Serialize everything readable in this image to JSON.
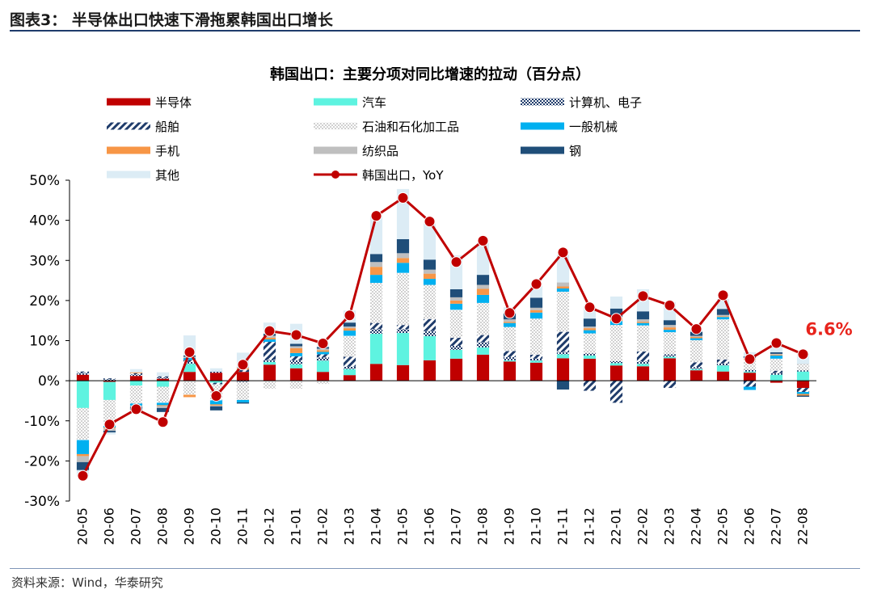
{
  "figure_title": "图表3：  半导体出口快速下滑拖累韩国出口增长",
  "source": "资料来源：Wind，华泰研究",
  "chart_data": {
    "type": "bar",
    "stacked": true,
    "title": "韩国出口：主要分项对同比增速的拉动（百分点）",
    "categories": [
      "20-05",
      "20-06",
      "20-07",
      "20-08",
      "20-09",
      "20-10",
      "20-11",
      "20-12",
      "21-01",
      "21-02",
      "21-03",
      "21-04",
      "21-05",
      "21-06",
      "21-07",
      "21-08",
      "21-09",
      "21-10",
      "21-11",
      "21-12",
      "22-01",
      "22-02",
      "22-03",
      "22-04",
      "22-05",
      "22-06",
      "22-07",
      "22-08"
    ],
    "ylim": [
      -30,
      50
    ],
    "yticks": [
      -30,
      -20,
      -10,
      0,
      10,
      20,
      30,
      40,
      50
    ],
    "ytick_labels": [
      "-30%",
      "-20%",
      "-10%",
      "0%",
      "10%",
      "20%",
      "30%",
      "40%",
      "50%"
    ],
    "series": [
      {
        "name": "半导体",
        "color": "#c00000",
        "pattern": "solid",
        "values": [
          1.5,
          -0.3,
          1.2,
          0.5,
          2.2,
          2.0,
          2.2,
          4.0,
          3.1,
          2.2,
          1.4,
          4.2,
          3.9,
          5.1,
          5.5,
          6.5,
          4.8,
          4.5,
          5.6,
          5.5,
          3.8,
          3.6,
          5.6,
          2.6,
          2.3,
          2.0,
          -0.5,
          -1.8
        ]
      },
      {
        "name": "汽车",
        "color": "#5ef3e0",
        "pattern": "solid",
        "values": [
          -6.8,
          -4.5,
          -1.2,
          -1.5,
          2.0,
          -0.5,
          0.0,
          0.7,
          1.0,
          2.8,
          1.5,
          7.5,
          8.0,
          6.0,
          2.2,
          1.8,
          0.3,
          0.5,
          1.0,
          0.8,
          0.6,
          0.6,
          0.4,
          0.3,
          1.5,
          0.3,
          1.5,
          2.3
        ]
      },
      {
        "name": "计算机、电子",
        "color": "#1f3c6b",
        "pattern": "cross",
        "values": [
          0.5,
          0.4,
          0.4,
          0.3,
          0.5,
          0.3,
          -0.3,
          0.5,
          1.0,
          0.8,
          0.6,
          1.2,
          1.0,
          1.3,
          1.0,
          1.3,
          0.8,
          0.5,
          0.6,
          0.5,
          0.5,
          0.6,
          0.6,
          0.5,
          0.5,
          0.4,
          0.4,
          0.3
        ]
      },
      {
        "name": "船舶",
        "color": "#1f3c6b",
        "pattern": "diag",
        "values": [
          0.3,
          0.2,
          0.3,
          0.3,
          0.5,
          -0.4,
          0.6,
          4.5,
          1.0,
          0.8,
          2.5,
          1.5,
          1.0,
          3.0,
          2.0,
          1.8,
          1.5,
          1.0,
          5.0,
          -2.5,
          -5.5,
          2.5,
          -1.8,
          1.2,
          1.0,
          -1.5,
          0.6,
          -1.0
        ]
      },
      {
        "name": "石油和石化加工品",
        "color": "#b7b7b7",
        "pattern": "dots",
        "values": [
          -8.0,
          -6.5,
          -4.5,
          -4.0,
          -3.5,
          -4.0,
          -4.5,
          -2.0,
          -2.0,
          -0.8,
          5.2,
          10.0,
          13.0,
          8.5,
          7.0,
          8.0,
          6.0,
          9.0,
          10.0,
          5.0,
          9.0,
          6.5,
          5.5,
          5.5,
          10.0,
          2.5,
          3.0,
          1.5
        ]
      },
      {
        "name": "一般机械",
        "color": "#00b0f0",
        "pattern": "solid",
        "values": [
          -3.5,
          -0.4,
          -0.5,
          -0.6,
          0.5,
          -1.0,
          -0.6,
          0.6,
          0.8,
          0.6,
          1.3,
          2.0,
          2.5,
          1.5,
          1.5,
          2.0,
          1.0,
          1.5,
          0.8,
          0.8,
          1.0,
          0.6,
          0.6,
          0.5,
          0.6,
          -0.8,
          0.8,
          -0.5
        ]
      },
      {
        "name": "手机",
        "color": "#f79646",
        "pattern": "solid",
        "values": [
          -0.5,
          -0.2,
          0.2,
          -0.2,
          -0.6,
          -0.3,
          0.3,
          0.4,
          1.2,
          0.4,
          0.6,
          2.0,
          1.2,
          1.3,
          0.8,
          1.5,
          0.3,
          0.6,
          0.5,
          0.5,
          0.8,
          0.3,
          0.6,
          0.3,
          0.2,
          0.3,
          0.2,
          -0.4
        ]
      },
      {
        "name": "纺织品",
        "color": "#bfbfbf",
        "pattern": "solid",
        "values": [
          -1.5,
          -0.6,
          -0.3,
          -0.5,
          0.3,
          -0.2,
          0.4,
          0.5,
          0.5,
          0.4,
          0.4,
          1.2,
          1.2,
          1.0,
          0.8,
          1.0,
          0.6,
          0.6,
          1.0,
          0.4,
          0.3,
          0.6,
          0.6,
          0.3,
          0.3,
          0.2,
          0.2,
          0.1
        ]
      },
      {
        "name": "钢",
        "color": "#1f4e79",
        "pattern": "solid",
        "values": [
          -2.0,
          -0.4,
          -0.8,
          -1.0,
          0.3,
          -1.0,
          -0.3,
          0.5,
          0.6,
          0.4,
          1.0,
          2.0,
          3.5,
          2.5,
          2.0,
          2.5,
          1.5,
          2.5,
          -2.2,
          2.0,
          2.0,
          2.0,
          1.2,
          1.0,
          1.5,
          0.4,
          0.4,
          -0.3
        ]
      },
      {
        "name": "其他",
        "color": "#dcecf5",
        "pattern": "solid",
        "values": [
          -1.5,
          -0.5,
          0.8,
          1.0,
          5.0,
          0.8,
          3.5,
          2.8,
          5.0,
          0.8,
          3.0,
          9.5,
          12.5,
          9.0,
          8.5,
          8.0,
          1.5,
          3.0,
          7.0,
          3.0,
          3.0,
          5.5,
          4.5,
          0.5,
          2.5,
          1.0,
          2.5,
          2.5
        ]
      }
    ],
    "line": {
      "name": "韩国出口，YoY",
      "color": "#c00000",
      "values": [
        -23.7,
        -10.9,
        -7.1,
        -10.3,
        7.1,
        -3.8,
        4.0,
        12.4,
        11.4,
        9.3,
        16.3,
        41.1,
        45.6,
        39.7,
        29.6,
        34.9,
        16.9,
        24.1,
        32.0,
        18.3,
        15.5,
        21.1,
        18.8,
        12.9,
        21.3,
        5.4,
        9.4,
        6.6
      ]
    },
    "annotation": {
      "label": "6.6%",
      "at_category": "22-08",
      "color": "#e8241c"
    }
  }
}
